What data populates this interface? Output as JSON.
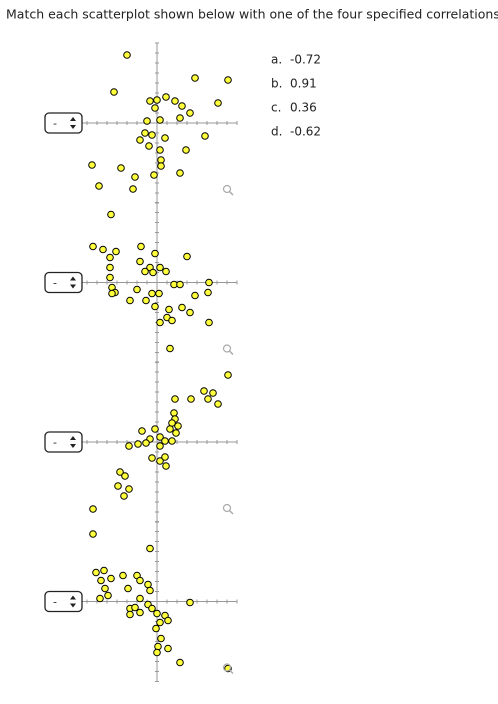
{
  "instruction": "Match each scatterplot shown below with one of the four specified correlations.",
  "options": [
    {
      "letter": "a.",
      "value": "-0.72"
    },
    {
      "letter": "b.",
      "value": "0.91"
    },
    {
      "letter": "c.",
      "value": "0.36"
    },
    {
      "letter": "d.",
      "value": "-0.62"
    }
  ],
  "plots": [
    {
      "select": "-",
      "xlim": [
        -8,
        8
      ],
      "ylim": [
        -8,
        8
      ],
      "points": [
        [
          -3.0,
          6.8
        ],
        [
          3.8,
          4.5
        ],
        [
          7.1,
          4.3
        ],
        [
          -4.3,
          3.1
        ],
        [
          -0.7,
          2.2
        ],
        [
          0,
          2.3
        ],
        [
          0.9,
          2.6
        ],
        [
          1.8,
          2.2
        ],
        [
          2.5,
          1.7
        ],
        [
          6.1,
          2.0
        ],
        [
          -0.2,
          1.5
        ],
        [
          -1.0,
          0.2
        ],
        [
          0.3,
          0.3
        ],
        [
          2.3,
          0.5
        ],
        [
          3.3,
          1.0
        ],
        [
          -1.2,
          -1.0
        ],
        [
          -1.7,
          -1.7
        ],
        [
          -0.5,
          -1.2
        ],
        [
          0.8,
          -1.5
        ],
        [
          4.8,
          -1.3
        ],
        [
          -0.8,
          -2.3
        ],
        [
          0.3,
          -2.7
        ],
        [
          2.9,
          -2.7
        ],
        [
          0.4,
          -3.7
        ],
        [
          0.4,
          -4.3
        ],
        [
          2.3,
          -5.0
        ],
        [
          -0.3,
          -5.2
        ],
        [
          -6.5,
          -4.2
        ],
        [
          -3.6,
          -4.5
        ],
        [
          -2.2,
          -5.4
        ],
        [
          -5.8,
          -6.3
        ],
        [
          -2.4,
          -6.6
        ]
      ]
    },
    {
      "select": "-",
      "xlim": [
        -8,
        8
      ],
      "ylim": [
        -8,
        8
      ],
      "points": [
        [
          -4.6,
          6.8
        ],
        [
          -6.4,
          3.6
        ],
        [
          -5.4,
          3.3
        ],
        [
          -4.1,
          3.1
        ],
        [
          -1.6,
          3.6
        ],
        [
          -0.2,
          2.9
        ],
        [
          3.0,
          2.6
        ],
        [
          -4.7,
          2.5
        ],
        [
          -1.7,
          2.1
        ],
        [
          -0.7,
          1.5
        ],
        [
          0.3,
          1.5
        ],
        [
          0.9,
          1.1
        ],
        [
          -4.7,
          1.5
        ],
        [
          -4.7,
          0.5
        ],
        [
          -1.2,
          1.1
        ],
        [
          -0.4,
          1.0
        ],
        [
          -4.5,
          -0.5
        ],
        [
          -4.2,
          -1.0
        ],
        [
          -2.0,
          -0.7
        ],
        [
          -4.5,
          -1.1
        ],
        [
          -0.5,
          -1.1
        ],
        [
          0.2,
          -1.1
        ],
        [
          1.7,
          -0.2
        ],
        [
          2.3,
          -0.2
        ],
        [
          5.2,
          0.0
        ],
        [
          -1.1,
          -1.8
        ],
        [
          -2.7,
          -1.8
        ],
        [
          5.1,
          -1.0
        ],
        [
          3.8,
          -1.3
        ],
        [
          -0.2,
          -2.4
        ],
        [
          1.2,
          -2.7
        ],
        [
          2.5,
          -2.5
        ],
        [
          3.3,
          -3.0
        ],
        [
          1.0,
          -3.5
        ],
        [
          1.5,
          -3.8
        ],
        [
          0.3,
          -4.0
        ],
        [
          5.2,
          -4.0
        ],
        [
          1.3,
          -6.6
        ]
      ]
    },
    {
      "select": "-",
      "xlim": [
        -8,
        8
      ],
      "ylim": [
        -8,
        8
      ],
      "points": [
        [
          7.1,
          6.7
        ],
        [
          4.7,
          5.1
        ],
        [
          5.6,
          4.9
        ],
        [
          6.1,
          3.8
        ],
        [
          5.1,
          4.3
        ],
        [
          3.4,
          4.3
        ],
        [
          1.8,
          4.3
        ],
        [
          1.7,
          2.9
        ],
        [
          1.8,
          2.3
        ],
        [
          1.5,
          1.9
        ],
        [
          2.1,
          1.6
        ],
        [
          1.3,
          1.3
        ],
        [
          1.9,
          0.9
        ],
        [
          -1.5,
          1.1
        ],
        [
          -0.2,
          1.3
        ],
        [
          -0.7,
          0.3
        ],
        [
          0.3,
          0.5
        ],
        [
          0.8,
          0.1
        ],
        [
          1.5,
          0.1
        ],
        [
          -2.8,
          -0.4
        ],
        [
          -1.9,
          -0.2
        ],
        [
          -1.1,
          -0.1
        ],
        [
          0.3,
          -0.4
        ],
        [
          -0.5,
          -1.6
        ],
        [
          0.3,
          -1.9
        ],
        [
          0.8,
          -1.5
        ],
        [
          0.9,
          -2.4
        ],
        [
          -3.7,
          -3.0
        ],
        [
          -3.2,
          -3.4
        ],
        [
          -3.9,
          -4.4
        ],
        [
          -2.8,
          -4.7
        ],
        [
          -3.3,
          -5.4
        ],
        [
          -6.4,
          -6.7
        ],
        [
          -6.4,
          -9.2
        ]
      ]
    },
    {
      "select": "-",
      "xlim": [
        -8,
        8
      ],
      "ylim": [
        -8,
        8
      ],
      "points": [
        [
          -0.7,
          5.3
        ],
        [
          -6.1,
          2.9
        ],
        [
          -5.3,
          3.1
        ],
        [
          -4.6,
          2.3
        ],
        [
          -5.6,
          2.1
        ],
        [
          -5.2,
          1.3
        ],
        [
          -4.9,
          0.6
        ],
        [
          -3.4,
          2.6
        ],
        [
          -2.0,
          2.6
        ],
        [
          -1.7,
          2.1
        ],
        [
          -0.9,
          1.7
        ],
        [
          -2.9,
          1.3
        ],
        [
          -0.7,
          1.1
        ],
        [
          -5.7,
          0.3
        ],
        [
          -1.7,
          0.3
        ],
        [
          -2.7,
          -0.7
        ],
        [
          -2.2,
          -0.6
        ],
        [
          -1.7,
          -1.1
        ],
        [
          -2.7,
          -1.3
        ],
        [
          -0.9,
          -0.3
        ],
        [
          -0.5,
          -0.7
        ],
        [
          0,
          -1.2
        ],
        [
          0.8,
          -1.4
        ],
        [
          3.3,
          -0.1
        ],
        [
          0.3,
          -2.1
        ],
        [
          1.1,
          -1.9
        ],
        [
          -0.1,
          -2.7
        ],
        [
          0.4,
          -3.7
        ],
        [
          0.1,
          -4.5
        ],
        [
          1.1,
          -4.7
        ],
        [
          0,
          -5.1
        ],
        [
          2.3,
          -6.1
        ],
        [
          7.1,
          -6.7
        ]
      ]
    }
  ]
}
